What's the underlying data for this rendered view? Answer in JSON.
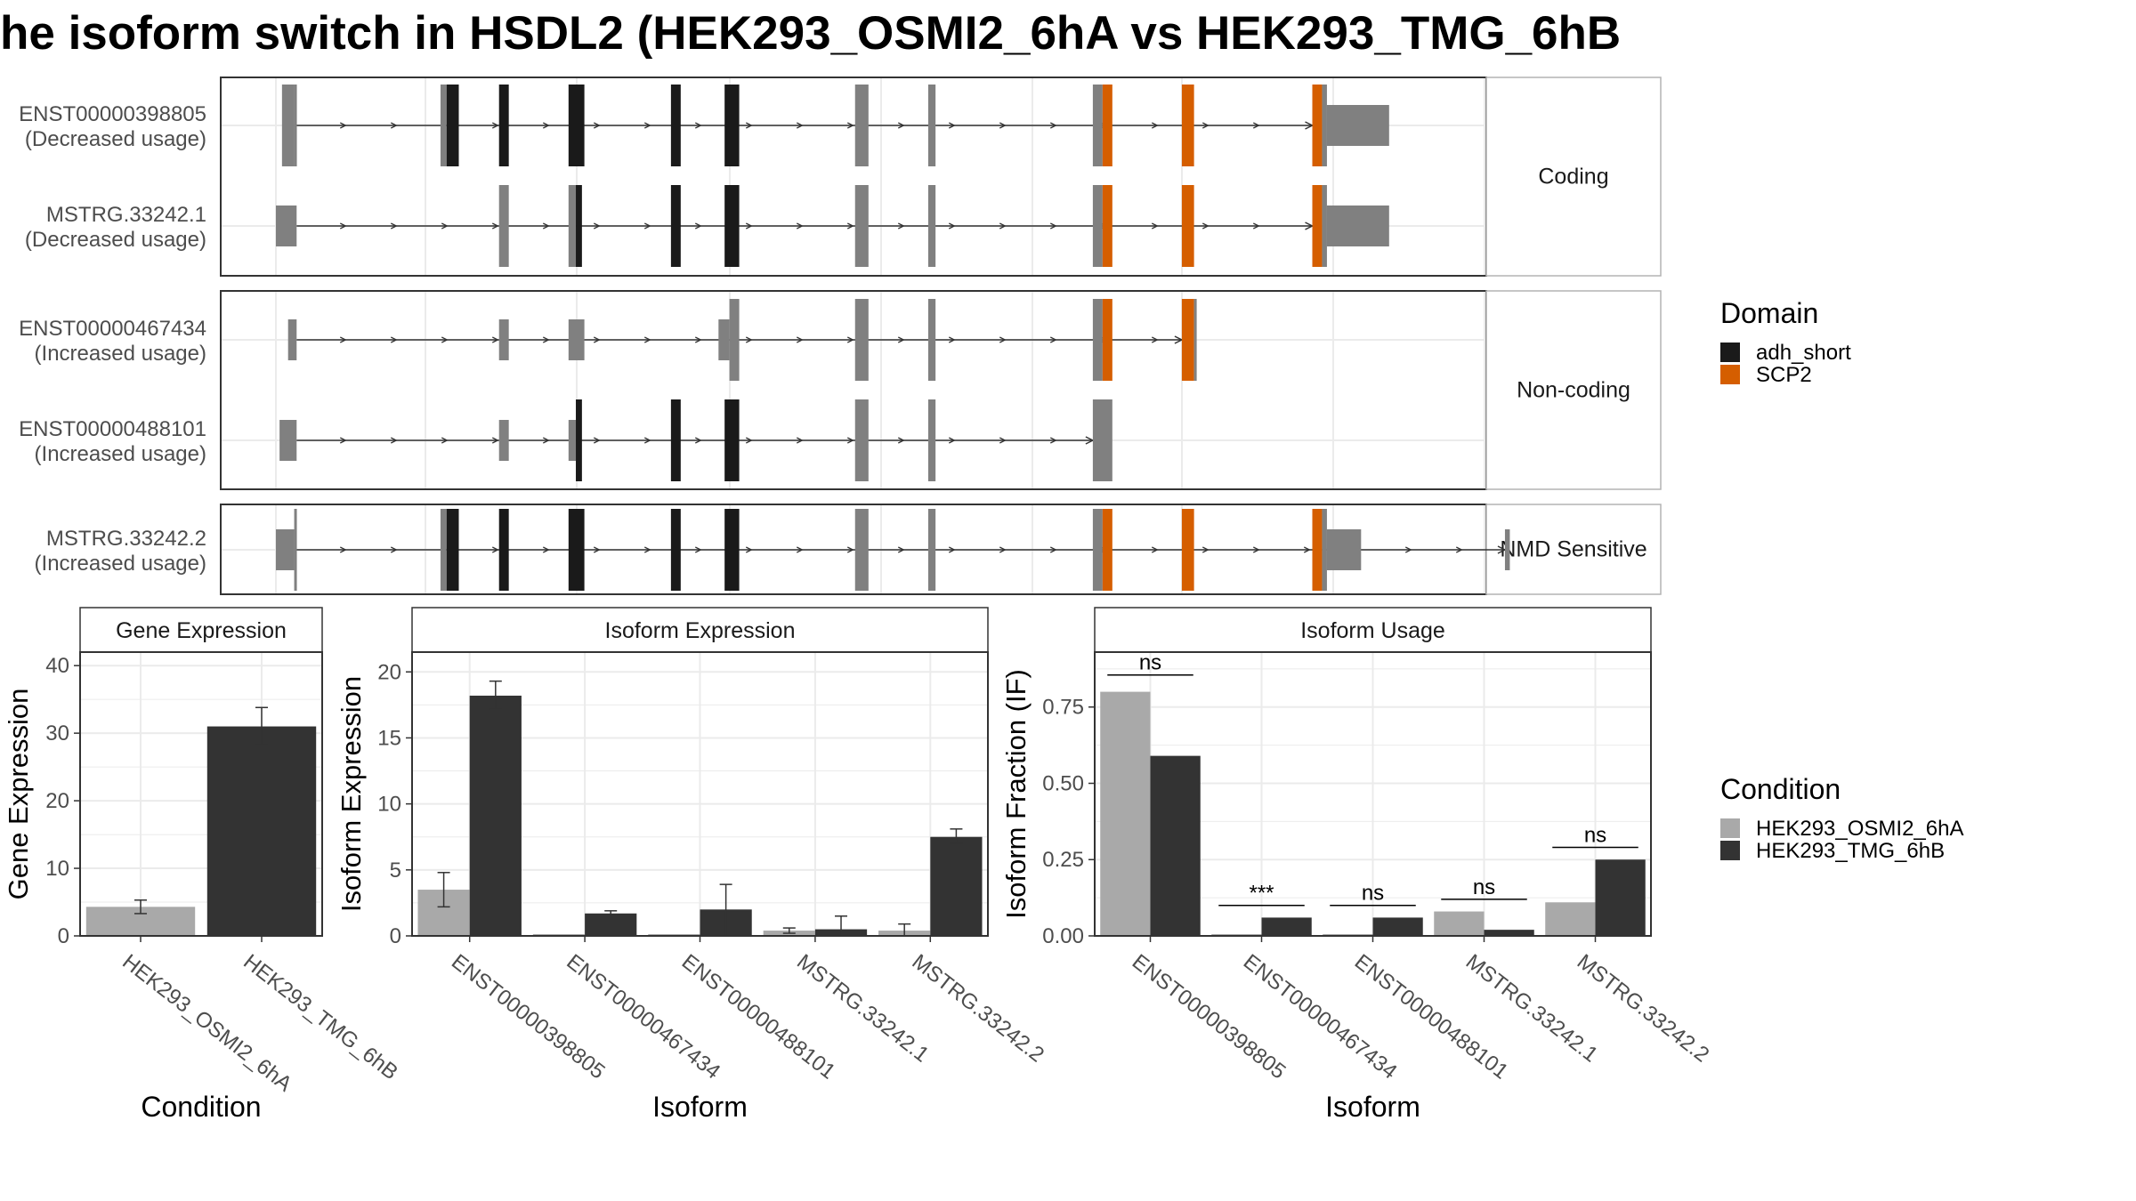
{
  "title": "he isoform switch in HSDL2 (HEK293_OSMI2_6hA vs HEK293_TMG_6hB",
  "colors": {
    "exon": "#808080",
    "adh_short": "#1a1a1a",
    "SCP2": "#d55e00",
    "cond1": "#a9a9a9",
    "cond2": "#333333",
    "grid": "#ebebeb",
    "panel_border": "#333333",
    "strip_border": "#b3b3b3"
  },
  "structure": {
    "coord_range": [
      0,
      1000
    ],
    "facets": [
      {
        "label": "Coding",
        "transcripts": [
          {
            "id": "ENST00000398805",
            "usage": "(Decreased usage)",
            "exons": [
              {
                "s": 5,
                "e": 15,
                "dom": null
              },
              {
                "s": 15,
                "e": 17,
                "dom": null
              },
              {
                "s": 135,
                "e": 140,
                "dom": null
              },
              {
                "s": 140,
                "e": 150,
                "dom": "adh_short"
              },
              {
                "s": 183,
                "e": 191,
                "dom": "adh_short"
              },
              {
                "s": 240,
                "e": 253,
                "dom": "adh_short"
              },
              {
                "s": 324,
                "e": 332,
                "dom": "adh_short"
              },
              {
                "s": 368,
                "e": 380,
                "dom": "adh_short"
              },
              {
                "s": 475,
                "e": 486,
                "dom": null
              },
              {
                "s": 535,
                "e": 541,
                "dom": null
              },
              {
                "s": 670,
                "e": 678,
                "dom": null
              },
              {
                "s": 678,
                "e": 686,
                "dom": "SCP2"
              },
              {
                "s": 743,
                "e": 753,
                "dom": "SCP2"
              },
              {
                "s": 850,
                "e": 858,
                "dom": "SCP2"
              },
              {
                "s": 858,
                "e": 862,
                "dom": null
              },
              {
                "s": 862,
                "e": 913,
                "dom": null,
                "thin": true
              }
            ],
            "intron": [
              17,
              850
            ]
          },
          {
            "id": "MSTRG.33242.1",
            "usage": "(Decreased usage)",
            "exons": [
              {
                "s": 0,
                "e": 17,
                "dom": null,
                "thin": true
              },
              {
                "s": 183,
                "e": 191,
                "dom": null
              },
              {
                "s": 240,
                "e": 246,
                "dom": null
              },
              {
                "s": 246,
                "e": 251,
                "dom": "adh_short"
              },
              {
                "s": 324,
                "e": 332,
                "dom": "adh_short"
              },
              {
                "s": 368,
                "e": 380,
                "dom": "adh_short"
              },
              {
                "s": 475,
                "e": 486,
                "dom": null
              },
              {
                "s": 535,
                "e": 541,
                "dom": null
              },
              {
                "s": 670,
                "e": 678,
                "dom": null
              },
              {
                "s": 678,
                "e": 686,
                "dom": "SCP2"
              },
              {
                "s": 743,
                "e": 753,
                "dom": "SCP2"
              },
              {
                "s": 850,
                "e": 858,
                "dom": "SCP2"
              },
              {
                "s": 858,
                "e": 862,
                "dom": null
              },
              {
                "s": 862,
                "e": 913,
                "dom": null,
                "thin": true
              }
            ],
            "intron": [
              17,
              850
            ]
          }
        ]
      },
      {
        "label": "Non-coding",
        "transcripts": [
          {
            "id": "ENST00000467434",
            "usage": "(Increased usage)",
            "exons": [
              {
                "s": 10,
                "e": 17,
                "dom": null,
                "thin": true
              },
              {
                "s": 183,
                "e": 191,
                "dom": null,
                "thin": true
              },
              {
                "s": 240,
                "e": 253,
                "dom": null,
                "thin": true
              },
              {
                "s": 363,
                "e": 372,
                "dom": null,
                "thin": true
              },
              {
                "s": 372,
                "e": 380,
                "dom": null
              },
              {
                "s": 475,
                "e": 486,
                "dom": null
              },
              {
                "s": 535,
                "e": 541,
                "dom": null
              },
              {
                "s": 670,
                "e": 678,
                "dom": null
              },
              {
                "s": 678,
                "e": 686,
                "dom": "SCP2"
              },
              {
                "s": 743,
                "e": 753,
                "dom": "SCP2"
              },
              {
                "s": 753,
                "e": 755,
                "dom": null
              }
            ],
            "intron": [
              17,
              743
            ]
          },
          {
            "id": "ENST00000488101",
            "usage": "(Increased usage)",
            "exons": [
              {
                "s": 3,
                "e": 17,
                "dom": null,
                "thin": true
              },
              {
                "s": 183,
                "e": 191,
                "dom": null,
                "thin": true
              },
              {
                "s": 240,
                "e": 246,
                "dom": null,
                "thin": true
              },
              {
                "s": 246,
                "e": 251,
                "dom": "adh_short"
              },
              {
                "s": 324,
                "e": 332,
                "dom": "adh_short"
              },
              {
                "s": 368,
                "e": 380,
                "dom": "adh_short"
              },
              {
                "s": 475,
                "e": 486,
                "dom": null
              },
              {
                "s": 535,
                "e": 541,
                "dom": null
              },
              {
                "s": 670,
                "e": 686,
                "dom": null
              }
            ],
            "intron": [
              17,
              670
            ]
          }
        ]
      },
      {
        "label": "NMD Sensitive",
        "transcripts": [
          {
            "id": "MSTRG.33242.2",
            "usage": "(Increased usage)",
            "exons": [
              {
                "s": 0,
                "e": 15,
                "dom": null,
                "thin": true
              },
              {
                "s": 15,
                "e": 17,
                "dom": null
              },
              {
                "s": 135,
                "e": 140,
                "dom": null
              },
              {
                "s": 140,
                "e": 150,
                "dom": "adh_short"
              },
              {
                "s": 183,
                "e": 191,
                "dom": "adh_short"
              },
              {
                "s": 240,
                "e": 253,
                "dom": "adh_short"
              },
              {
                "s": 324,
                "e": 332,
                "dom": "adh_short"
              },
              {
                "s": 368,
                "e": 380,
                "dom": "adh_short"
              },
              {
                "s": 475,
                "e": 486,
                "dom": null
              },
              {
                "s": 535,
                "e": 541,
                "dom": null
              },
              {
                "s": 670,
                "e": 678,
                "dom": null
              },
              {
                "s": 678,
                "e": 686,
                "dom": "SCP2"
              },
              {
                "s": 743,
                "e": 753,
                "dom": "SCP2"
              },
              {
                "s": 850,
                "e": 858,
                "dom": "SCP2"
              },
              {
                "s": 858,
                "e": 862,
                "dom": null
              },
              {
                "s": 862,
                "e": 890,
                "dom": null,
                "thin": true
              },
              {
                "s": 1008,
                "e": 1012,
                "dom": null,
                "thin": true
              }
            ],
            "intron": [
              17,
              1008
            ]
          }
        ]
      }
    ]
  },
  "legend_domain": {
    "title": "Domain",
    "items": [
      {
        "label": "adh_short",
        "color": "#1a1a1a"
      },
      {
        "label": "SCP2",
        "color": "#d55e00"
      }
    ]
  },
  "legend_condition": {
    "title": "Condition",
    "items": [
      {
        "label": "HEK293_OSMI2_6hA",
        "color": "#a9a9a9"
      },
      {
        "label": "HEK293_TMG_6hB",
        "color": "#333333"
      }
    ]
  },
  "chart_data": [
    {
      "type": "bar",
      "strip": "Gene Expression",
      "xlabel": "Condition",
      "ylabel": "Gene Expression",
      "ylim": [
        0,
        42
      ],
      "yticks": [
        0,
        10,
        20,
        30,
        40
      ],
      "categories": [
        "HEK293_OSMI2_6hA",
        "HEK293_TMG_6hB"
      ],
      "values": [
        4.3,
        31.0
      ],
      "errors": [
        [
          3.3,
          5.3
        ],
        [
          28.3,
          33.8
        ]
      ],
      "bar_colors": [
        "#a9a9a9",
        "#333333"
      ]
    },
    {
      "type": "bar",
      "strip": "Isoform Expression",
      "xlabel": "Isoform",
      "ylabel": "Isoform Expression",
      "ylim": [
        0,
        21.5
      ],
      "yticks": [
        0,
        5,
        10,
        15,
        20
      ],
      "categories": [
        "ENST00000398805",
        "ENST00000467434",
        "ENST00000488101",
        "MSTRG.33242.1",
        "MSTRG.33242.2"
      ],
      "series": [
        {
          "name": "HEK293_OSMI2_6hA",
          "values": [
            3.5,
            0.0,
            0.0,
            0.4,
            0.4
          ],
          "errors": [
            [
              2.2,
              4.8
            ],
            [
              0,
              0
            ],
            [
              0,
              0
            ],
            [
              0.2,
              0.6
            ],
            [
              0.0,
              0.9
            ]
          ]
        },
        {
          "name": "HEK293_TMG_6hB",
          "values": [
            18.2,
            1.7,
            2.0,
            0.5,
            7.5
          ],
          "errors": [
            [
              17.2,
              19.3
            ],
            [
              1.5,
              1.9
            ],
            [
              0.0,
              3.9
            ],
            [
              0.0,
              1.5
            ],
            [
              7.0,
              8.1
            ]
          ]
        }
      ]
    },
    {
      "type": "bar",
      "strip": "Isoform Usage",
      "xlabel": "Isoform",
      "ylabel": "Isoform Fraction (IF)",
      "ylim": [
        0,
        0.93
      ],
      "yticks": [
        "0.00",
        "0.25",
        "0.50",
        "0.75"
      ],
      "categories": [
        "ENST00000398805",
        "ENST00000467434",
        "ENST00000488101",
        "MSTRG.33242.1",
        "MSTRG.33242.2"
      ],
      "series": [
        {
          "name": "HEK293_OSMI2_6hA",
          "values": [
            0.8,
            0.0,
            0.0,
            0.08,
            0.11
          ]
        },
        {
          "name": "HEK293_TMG_6hB",
          "values": [
            0.59,
            0.06,
            0.06,
            0.02,
            0.25
          ]
        }
      ],
      "significance": [
        "ns",
        "***",
        "ns",
        "ns",
        "ns"
      ],
      "sig_y": [
        0.855,
        0.1,
        0.1,
        0.12,
        0.29
      ]
    }
  ]
}
